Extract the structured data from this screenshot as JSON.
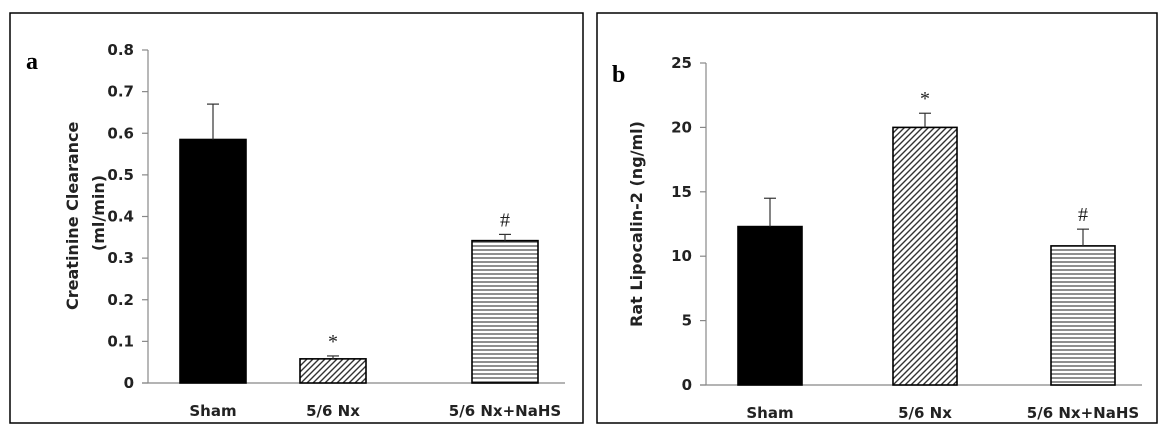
{
  "colors": {
    "solid": "#000000",
    "axis": "#888888",
    "frame": "#000000"
  },
  "chart_data": [
    {
      "type": "bar",
      "panel_label": "a",
      "ylabel_lines": [
        "Creatinine Clearance",
        "(ml/min)"
      ],
      "categories": [
        "Sham",
        "5/6 Nx",
        "5/6 Nx+NaHS"
      ],
      "values": [
        0.585,
        0.058,
        0.342
      ],
      "errors": [
        0.085,
        0.007,
        0.015
      ],
      "fills": [
        "solid",
        "diagonal-hatch",
        "horizontal-lines"
      ],
      "annotations": [
        "",
        "*",
        "#"
      ],
      "ylim": [
        0,
        0.8
      ],
      "yticks": [
        0,
        0.1,
        0.2,
        0.3,
        0.4,
        0.5,
        0.6,
        0.7,
        0.8
      ],
      "ytick_labels": [
        "0",
        "0.1",
        "0.2",
        "0.3",
        "0.4",
        "0.5",
        "0.6",
        "0.7",
        "0.8"
      ],
      "grid": false
    },
    {
      "type": "bar",
      "panel_label": "b",
      "ylabel_lines": [
        "Rat Lipocalin-2 (ng/ml)"
      ],
      "categories": [
        "Sham",
        "5/6 Nx",
        "5/6 Nx+NaHS"
      ],
      "values": [
        12.3,
        20.0,
        10.8
      ],
      "errors": [
        2.2,
        1.1,
        1.3
      ],
      "fills": [
        "solid",
        "diagonal-hatch",
        "horizontal-lines"
      ],
      "annotations": [
        "",
        "*",
        "#"
      ],
      "ylim": [
        0,
        25
      ],
      "yticks": [
        0,
        5,
        10,
        15,
        20,
        25
      ],
      "ytick_labels": [
        "0",
        "5",
        "10",
        "15",
        "20",
        "25"
      ],
      "grid": false
    }
  ]
}
